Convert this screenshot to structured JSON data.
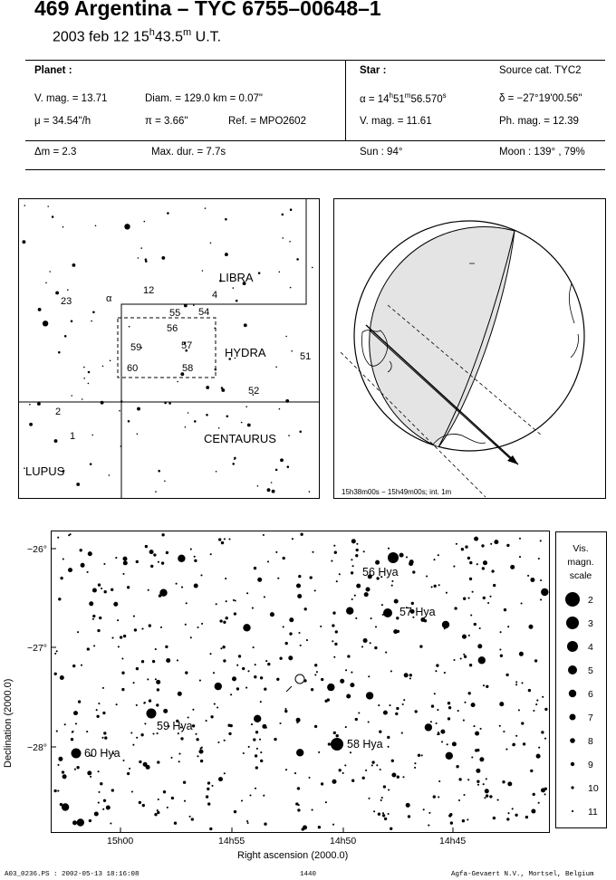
{
  "header": {
    "title": "469 Argentina  –  TYC 6755–00648–1",
    "subtitle_date": "2003 feb 12  15",
    "subtitle_h": "h",
    "subtitle_min": "43.5",
    "subtitle_m": "m",
    "subtitle_ut": " U.T."
  },
  "planet": {
    "heading": "Planet :",
    "vmag": "V. mag. = 13.71",
    "diam": "Diam. = 129.0 km = 0.07\"",
    "mu": "μ =  34.54\"/h",
    "pi": "π =  3.66\"",
    "ref": "Ref. = MPO2602",
    "dm": "Δm = 2.3",
    "maxdur": "Max. dur. = 7.7s"
  },
  "star": {
    "heading": "Star :",
    "source": "Source cat.  TYC2",
    "alpha_a": "α = 14",
    "alpha_h": "h",
    "alpha_b": "51",
    "alpha_m": "m",
    "alpha_c": "56.570",
    "alpha_s": "s",
    "delta": "δ = −27°19'00.56\"",
    "vmag": "V. mag. = 11.61",
    "phmag": "Ph. mag. = 12.39",
    "sun": "Sun :  94°",
    "moon": "Moon : 139° , 79%"
  },
  "finder": {
    "constellations": [
      "LIBRA",
      "HYDRA",
      "CENTAURUS",
      "LUPUS"
    ],
    "labels": [
      {
        "t": "23"
      },
      {
        "t": "α"
      },
      {
        "t": "12"
      },
      {
        "t": "4"
      },
      {
        "t": "55"
      },
      {
        "t": "54"
      },
      {
        "t": "56"
      },
      {
        "t": "59"
      },
      {
        "t": "57"
      },
      {
        "t": "60"
      },
      {
        "t": "58"
      },
      {
        "t": "51"
      },
      {
        "t": "52"
      },
      {
        "t": "2"
      },
      {
        "t": "1"
      }
    ]
  },
  "globe": {
    "caption": "15h38m00s − 15h49m00s; int.  1m"
  },
  "skymap": {
    "ylabel": "Declination (2000.0)",
    "xlabel": "Right ascension (2000.0)",
    "yticks": [
      "−26°",
      "−27°",
      "−28°"
    ],
    "xticks": [
      "15h00",
      "14h55",
      "14h50",
      "14h45"
    ],
    "star_labels": [
      "56 Hya",
      "57 Hya",
      "59 Hya",
      "60 Hya",
      "58 Hya"
    ]
  },
  "legend": {
    "title1": "Vis.",
    "title2": "magn.",
    "title3": "scale",
    "mags": [
      "2",
      "3",
      "4",
      "5",
      "6",
      "7",
      "8",
      "9",
      "10",
      "11"
    ]
  },
  "footer": {
    "left": "A03_0236.PS : 2002-05-13 18:16:08",
    "center": "1440",
    "right": "Agfa-Gevaert N.V., Mortsel, Belgium"
  }
}
